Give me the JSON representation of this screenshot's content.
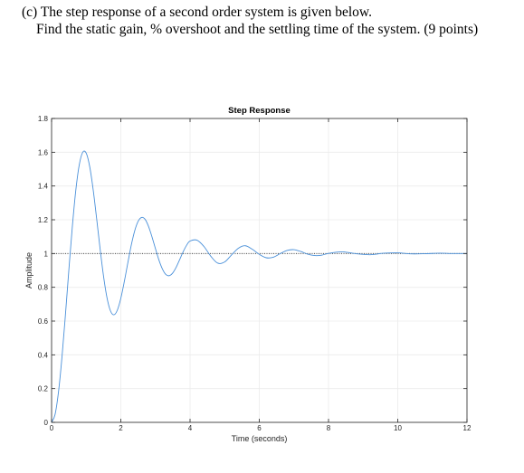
{
  "question": {
    "line1": "(c) The step response of a second order system is given below.",
    "line2": "Find the static gain, % overshoot and the settling time of the system. (9 points)"
  },
  "chart_data": {
    "type": "line",
    "title": "Step Response",
    "xlabel": "Time (seconds)",
    "ylabel": "Amplitude",
    "xlim": [
      0,
      12
    ],
    "ylim": [
      0,
      1.8
    ],
    "xticks": [
      0,
      2,
      4,
      6,
      8,
      10,
      12
    ],
    "yticks": [
      0,
      0.2,
      0.4,
      0.6,
      0.8,
      1,
      1.2,
      1.4,
      1.6,
      1.8
    ],
    "xtick_labels": [
      "0",
      "2",
      "4",
      "6",
      "8",
      "10",
      "12"
    ],
    "ytick_labels": [
      "0",
      "0.2",
      "0.4",
      "0.6",
      "0.8",
      "1",
      "1.2",
      "1.4",
      "1.6",
      "1.8"
    ],
    "grid": true,
    "reference_line": {
      "y": 1,
      "style": "dotted"
    },
    "series": [
      {
        "color": "#4a90d9",
        "x": [
          0,
          0.1,
          0.2,
          0.3,
          0.4,
          0.5,
          0.6,
          0.7,
          0.8,
          0.9,
          1.0,
          1.1,
          1.2,
          1.3,
          1.4,
          1.5,
          1.6,
          1.7,
          1.8,
          1.9,
          2.0,
          2.1,
          2.2,
          2.3,
          2.4,
          2.5,
          2.6,
          2.7,
          2.8,
          2.9,
          3.0,
          3.1,
          3.2,
          3.3,
          3.4,
          3.5,
          3.6,
          3.7,
          3.8,
          3.9,
          4.0,
          4.2,
          4.4,
          4.6,
          4.8,
          5.0,
          5.2,
          5.4,
          5.6,
          5.8,
          6.0,
          6.2,
          6.4,
          6.6,
          6.8,
          7.0,
          7.2,
          7.4,
          7.6,
          7.8,
          8.0,
          8.4,
          8.8,
          9.2,
          9.6,
          10.0,
          10.4,
          10.8,
          11.2,
          11.6,
          12.0
        ],
        "y": [
          0,
          0.046,
          0.181,
          0.386,
          0.637,
          0.906,
          1.161,
          1.376,
          1.526,
          1.6,
          1.595,
          1.516,
          1.38,
          1.21,
          1.031,
          0.867,
          0.739,
          0.661,
          0.637,
          0.665,
          0.735,
          0.833,
          0.942,
          1.048,
          1.134,
          1.191,
          1.214,
          1.203,
          1.161,
          1.099,
          1.029,
          0.962,
          0.909,
          0.876,
          0.869,
          0.885,
          0.919,
          0.964,
          1.01,
          1.049,
          1.074,
          1.079,
          1.042,
          0.984,
          0.943,
          0.95,
          0.992,
          1.032,
          1.046,
          1.025,
          0.995,
          0.975,
          0.978,
          0.999,
          1.018,
          1.023,
          1.012,
          0.996,
          0.988,
          0.99,
          1.001,
          1.01,
          0.999,
          0.993,
          1.002,
          1.004,
          0.998,
          0.999,
          1.002,
          1.0,
          1.0
        ]
      }
    ]
  }
}
